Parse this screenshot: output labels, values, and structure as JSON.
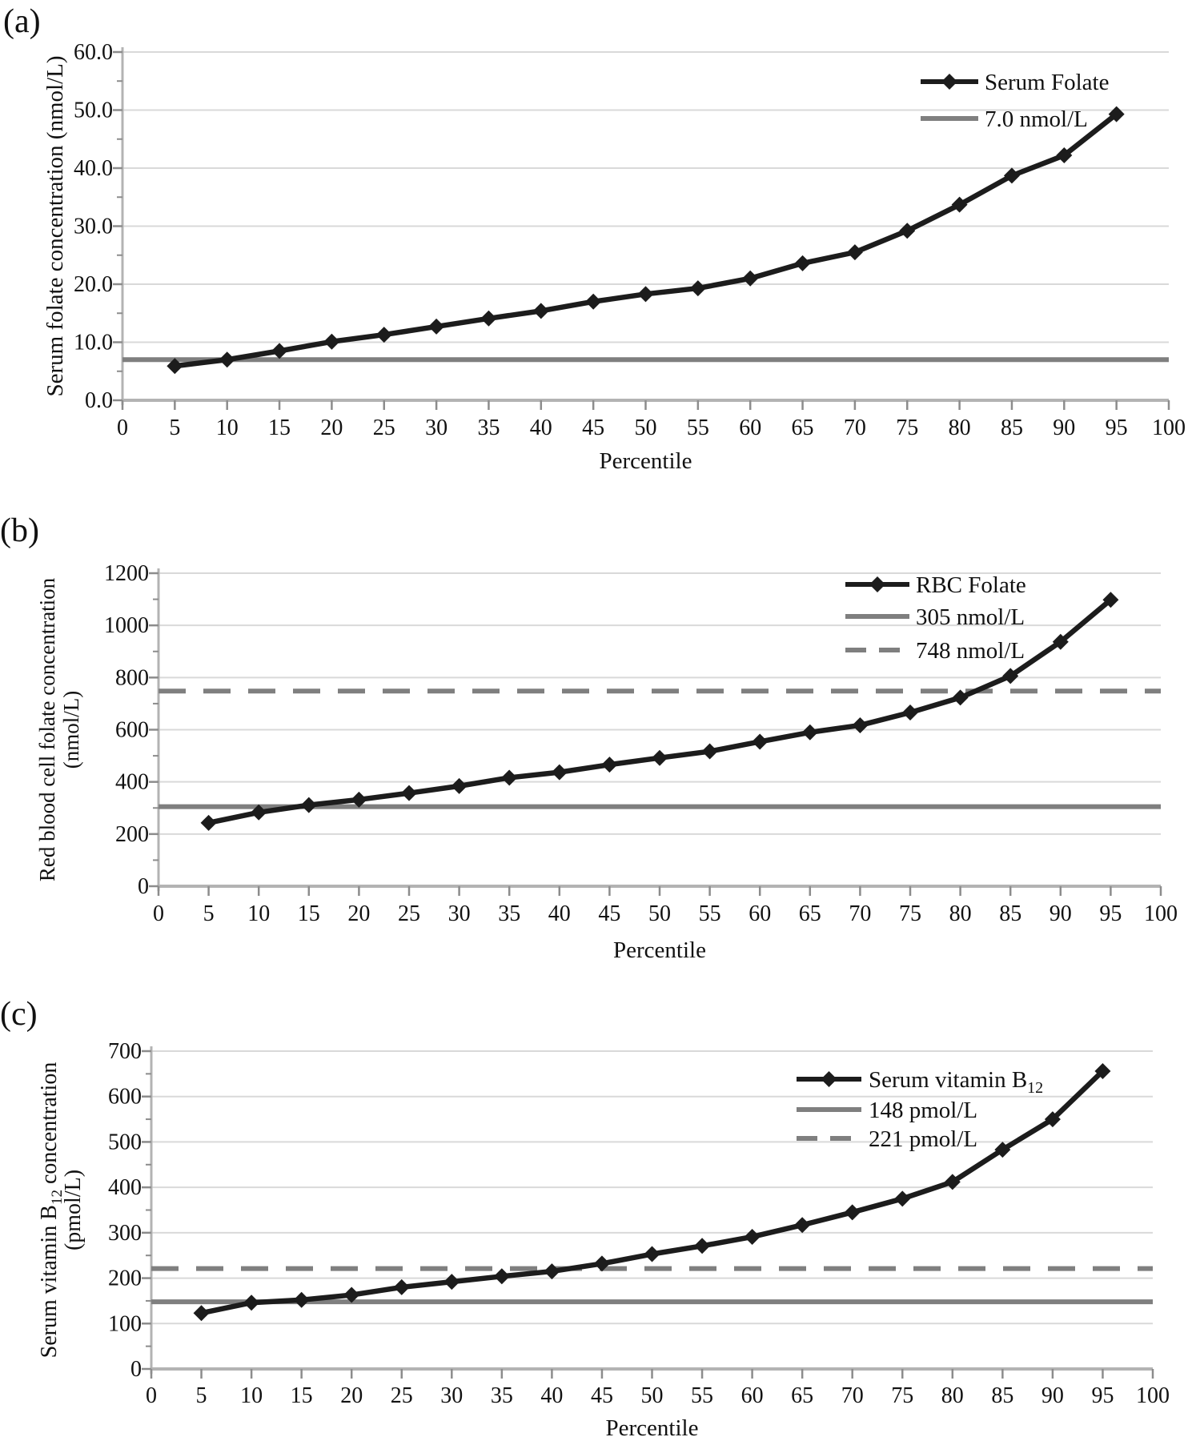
{
  "figure": {
    "background": "#ffffff",
    "x_axis_title": "Percentile",
    "colors": {
      "series": "#1c1c1c",
      "reference": "#7f7f7f",
      "gridline": "#d9d9d9",
      "axis": "#b3b3b3",
      "tick": "#8c8c8c",
      "text": "#111111"
    }
  },
  "chart_data": [
    {
      "panel_label": "(a)",
      "type": "line",
      "xlabel": "Percentile",
      "ylabel_lines": [
        [
          {
            "t": "Serum folate concentration (nmol/L)"
          }
        ]
      ],
      "xlim": [
        0,
        100
      ],
      "ylim": [
        0,
        60
      ],
      "x_ticks": [
        0,
        5,
        10,
        15,
        20,
        25,
        30,
        35,
        40,
        45,
        50,
        55,
        60,
        65,
        70,
        75,
        80,
        85,
        90,
        95,
        100
      ],
      "y_ticks": [
        0,
        10,
        20,
        30,
        40,
        50,
        60
      ],
      "y_tick_labels": [
        "0.0",
        "10.0",
        "20.0",
        "30.0",
        "40.0",
        "50.0",
        "60.0"
      ],
      "grid": true,
      "legend_position": "top-right",
      "x": [
        5,
        10,
        15,
        20,
        25,
        30,
        35,
        40,
        45,
        50,
        55,
        60,
        65,
        70,
        75,
        80,
        85,
        90,
        95
      ],
      "series": [
        {
          "name": [
            {
              "t": "Serum Folate"
            }
          ],
          "marker": "diamond",
          "color": "#1c1c1c",
          "values": [
            5.9,
            7.0,
            8.5,
            10.1,
            11.3,
            12.7,
            14.1,
            15.4,
            17.0,
            18.3,
            19.3,
            21.0,
            23.6,
            25.5,
            29.2,
            33.7,
            38.7,
            42.2,
            49.3
          ]
        }
      ],
      "reference_lines": [
        {
          "label": [
            {
              "t": "7.0 nmol/L"
            }
          ],
          "value": 7.0,
          "dashed": false,
          "color": "#7f7f7f"
        }
      ]
    },
    {
      "panel_label": "(b)",
      "type": "line",
      "xlabel": "Percentile",
      "ylabel_lines": [
        [
          {
            "t": "Red blood cell folate concentration"
          }
        ],
        [
          {
            "t": "(nmol/L)"
          }
        ]
      ],
      "xlim": [
        0,
        100
      ],
      "ylim": [
        0,
        1200
      ],
      "x_ticks": [
        0,
        5,
        10,
        15,
        20,
        25,
        30,
        35,
        40,
        45,
        50,
        55,
        60,
        65,
        70,
        75,
        80,
        85,
        90,
        95,
        100
      ],
      "y_ticks": [
        0,
        200,
        400,
        600,
        800,
        1000,
        1200
      ],
      "y_tick_labels": [
        "0",
        "200",
        "400",
        "600",
        "800",
        "1000",
        "1200"
      ],
      "grid": true,
      "legend_position": "top-right",
      "x": [
        5,
        10,
        15,
        20,
        25,
        30,
        35,
        40,
        45,
        50,
        55,
        60,
        65,
        70,
        75,
        80,
        85,
        90,
        95
      ],
      "series": [
        {
          "name": [
            {
              "t": "RBC Folate"
            }
          ],
          "marker": "diamond",
          "color": "#1c1c1c",
          "values": [
            243,
            283,
            311,
            332,
            357,
            384,
            416,
            437,
            466,
            492,
            517,
            554,
            590,
            617,
            666,
            723,
            806,
            937,
            1098
          ]
        }
      ],
      "reference_lines": [
        {
          "label": [
            {
              "t": "305 nmol/L"
            }
          ],
          "value": 305,
          "dashed": false,
          "color": "#7f7f7f"
        },
        {
          "label": [
            {
              "t": "748 nmol/L"
            }
          ],
          "value": 748,
          "dashed": true,
          "color": "#7f7f7f"
        }
      ]
    },
    {
      "panel_label": "(c)",
      "type": "line",
      "xlabel": "Percentile",
      "ylabel_lines": [
        [
          {
            "t": "Serum vitamin B"
          },
          {
            "t": "12",
            "sub": true
          },
          {
            "t": " concentration"
          }
        ],
        [
          {
            "t": "(pmol/L)"
          }
        ]
      ],
      "xlim": [
        0,
        100
      ],
      "ylim": [
        0,
        700
      ],
      "x_ticks": [
        0,
        5,
        10,
        15,
        20,
        25,
        30,
        35,
        40,
        45,
        50,
        55,
        60,
        65,
        70,
        75,
        80,
        85,
        90,
        95,
        100
      ],
      "y_ticks": [
        0,
        100,
        200,
        300,
        400,
        500,
        600,
        700
      ],
      "y_tick_labels": [
        "0",
        "100",
        "200",
        "300",
        "400",
        "500",
        "600",
        "700"
      ],
      "grid": true,
      "legend_position": "top-right",
      "x": [
        5,
        10,
        15,
        20,
        25,
        30,
        35,
        40,
        45,
        50,
        55,
        60,
        65,
        70,
        75,
        80,
        85,
        90,
        95
      ],
      "series": [
        {
          "name": [
            {
              "t": "Serum vitamin B"
            },
            {
              "t": "12",
              "sub": true
            }
          ],
          "marker": "diamond",
          "color": "#1c1c1c",
          "values": [
            123,
            146,
            152,
            163,
            180,
            192,
            204,
            215,
            232,
            253,
            271,
            291,
            317,
            345,
            375,
            412,
            483,
            550,
            656
          ]
        }
      ],
      "reference_lines": [
        {
          "label": [
            {
              "t": "148 pmol/L"
            }
          ],
          "value": 148,
          "dashed": false,
          "color": "#7f7f7f"
        },
        {
          "label": [
            {
              "t": "221 pmol/L"
            }
          ],
          "value": 221,
          "dashed": true,
          "color": "#7f7f7f"
        }
      ]
    }
  ]
}
